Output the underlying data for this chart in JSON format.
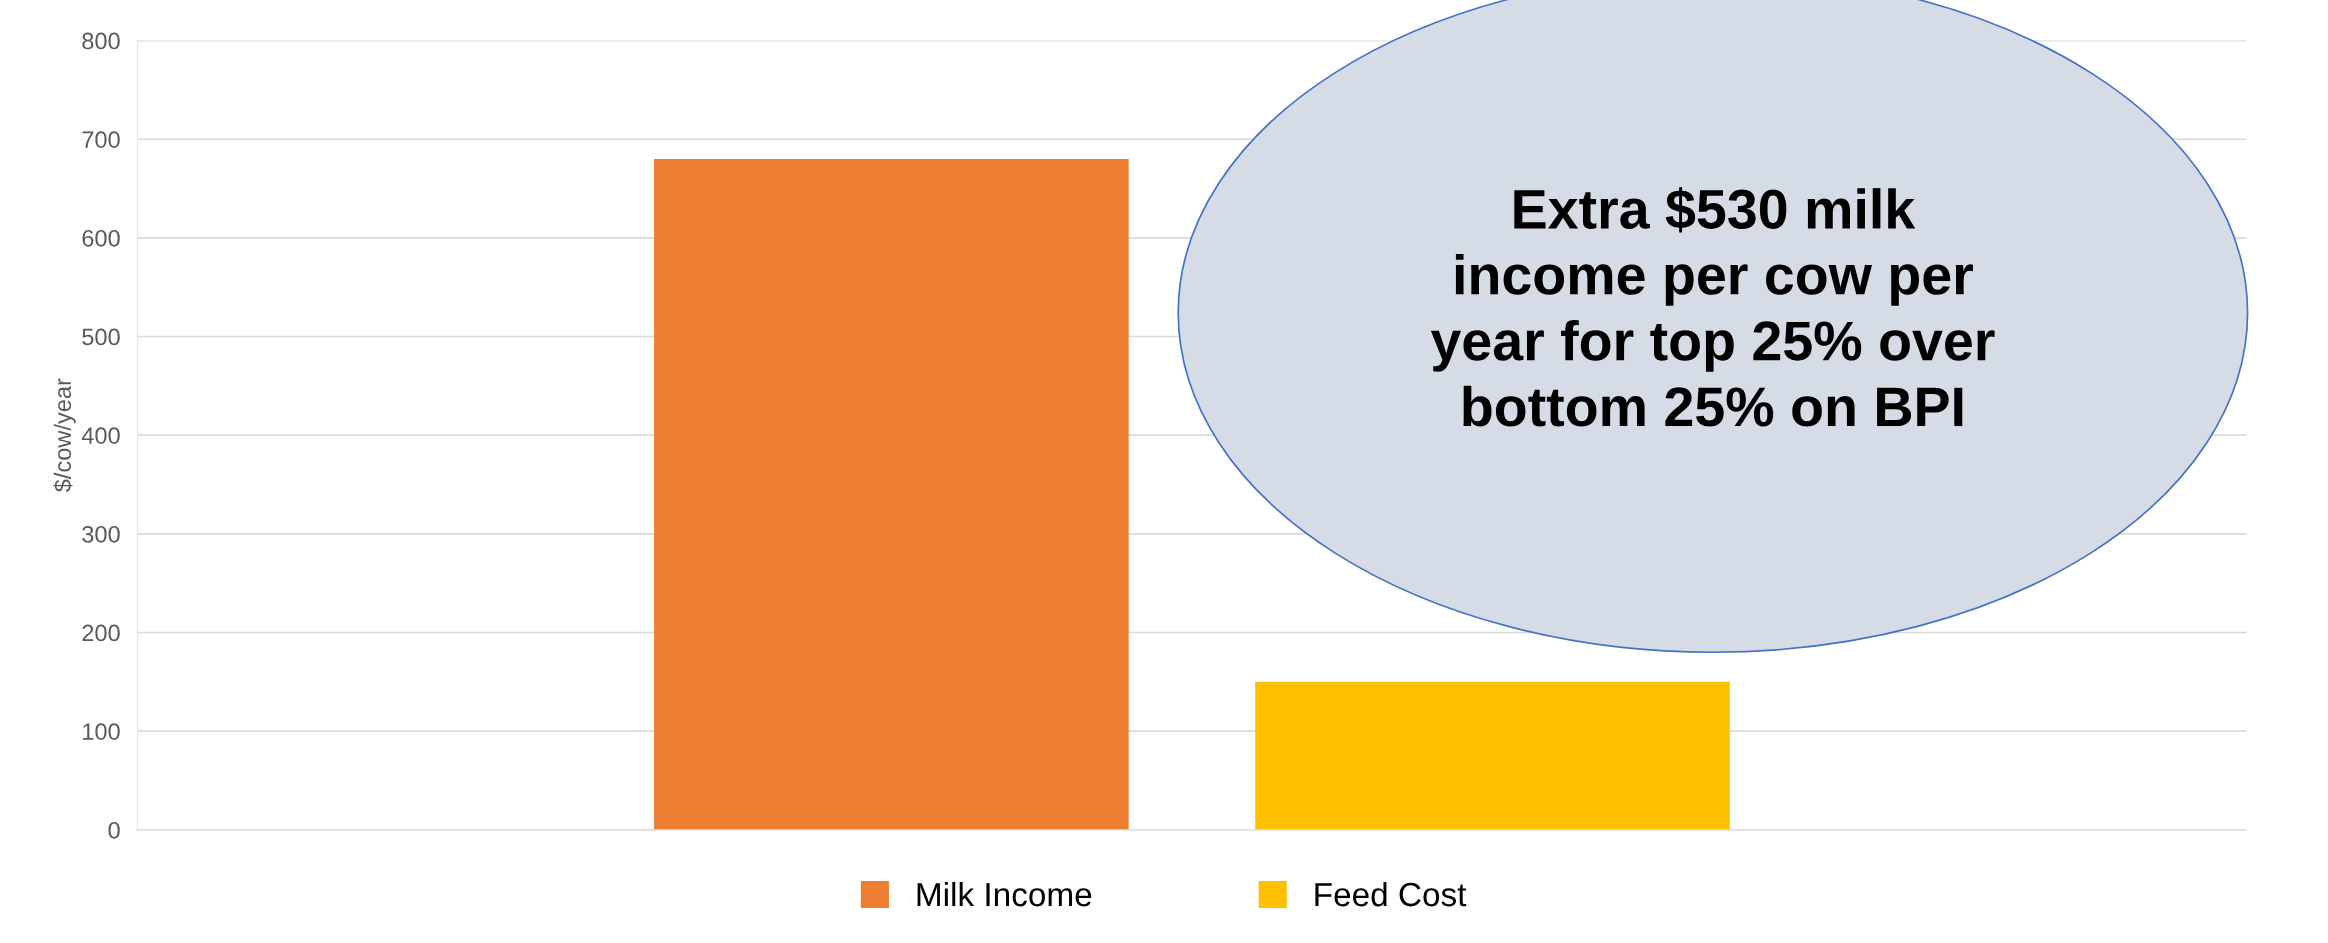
{
  "chart_data": {
    "type": "bar",
    "categories": [
      null
    ],
    "series": [
      {
        "name": "Milk Income",
        "color": "#ed7d31",
        "values": [
          680
        ]
      },
      {
        "name": "Feed Cost",
        "color": "#ffc000",
        "values": [
          150
        ]
      }
    ],
    "ylabel": "$/cow/year",
    "ylim": [
      0,
      800
    ],
    "yticks": [
      0,
      100,
      200,
      300,
      400,
      500,
      600,
      700,
      800
    ],
    "grid": "y",
    "legend": "bottom",
    "annotations": [
      "Extra $530 milk\nincome per cow per\nyear for top 25% over\nbottom 25% on BPI"
    ]
  }
}
